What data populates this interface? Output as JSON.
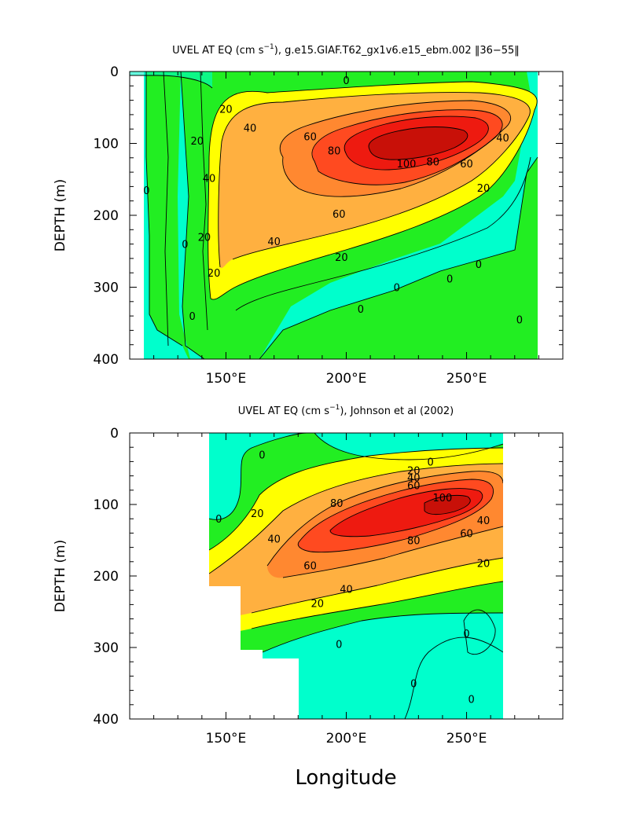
{
  "figure": {
    "xlabel": "Longitude",
    "ylabel": "DEPTH (m)"
  },
  "chart_data": [
    {
      "type": "heatmap",
      "title_main": "UVEL AT EQ (cm s",
      "title_sup": "−1",
      "title_rest": "), g.e15.GIAF.T62_gx1v6.e15_ebm.002 ‖36−55‖",
      "xlabel": "",
      "ylabel": "DEPTH (m)",
      "xlim": [
        110,
        290
      ],
      "ylim": [
        400,
        0
      ],
      "x_ticks": [
        150,
        200,
        250
      ],
      "x_tick_labels": [
        "150°E",
        "200°E",
        "250°E"
      ],
      "y_ticks": [
        0,
        100,
        200,
        300,
        400
      ],
      "y_tick_labels": [
        "0",
        "100",
        "200",
        "300",
        "400"
      ],
      "contour_interval": 10,
      "contour_labels": [
        {
          "text": "0",
          "x": 200,
          "y": 12
        },
        {
          "text": "20",
          "x": 150,
          "y": 52
        },
        {
          "text": "40",
          "x": 160,
          "y": 78
        },
        {
          "text": "60",
          "x": 185,
          "y": 90
        },
        {
          "text": "80",
          "x": 195,
          "y": 110
        },
        {
          "text": "100",
          "x": 225,
          "y": 128
        },
        {
          "text": "80",
          "x": 236,
          "y": 125
        },
        {
          "text": "60",
          "x": 250,
          "y": 128
        },
        {
          "text": "40",
          "x": 265,
          "y": 92
        },
        {
          "text": "20",
          "x": 257,
          "y": 162
        },
        {
          "text": "20",
          "x": 138,
          "y": 96
        },
        {
          "text": "40",
          "x": 143,
          "y": 148
        },
        {
          "text": "20",
          "x": 141,
          "y": 230
        },
        {
          "text": "20",
          "x": 145,
          "y": 280
        },
        {
          "text": "60",
          "x": 197,
          "y": 198
        },
        {
          "text": "40",
          "x": 170,
          "y": 236
        },
        {
          "text": "20",
          "x": 198,
          "y": 258
        },
        {
          "text": "0",
          "x": 110,
          "y": 65
        },
        {
          "text": "0",
          "x": 117,
          "y": 165
        },
        {
          "text": "0",
          "x": 108,
          "y": 240
        },
        {
          "text": "0",
          "x": 133,
          "y": 240
        },
        {
          "text": "0",
          "x": 136,
          "y": 340
        },
        {
          "text": "0",
          "x": 221,
          "y": 300
        },
        {
          "text": "0",
          "x": 206,
          "y": 330
        },
        {
          "text": "0",
          "x": 243,
          "y": 288
        },
        {
          "text": "0",
          "x": 255,
          "y": 268
        },
        {
          "text": "0",
          "x": 272,
          "y": 345
        }
      ]
    },
    {
      "type": "heatmap",
      "title_main": "UVEL AT EQ (cm s",
      "title_sup": "−1",
      "title_rest": "), Johnson et al (2002)",
      "xlabel": "Longitude",
      "ylabel": "DEPTH (m)",
      "xlim": [
        110,
        290
      ],
      "ylim": [
        400,
        0
      ],
      "x_ticks": [
        150,
        200,
        250
      ],
      "x_tick_labels": [
        "150°E",
        "200°E",
        "250°E"
      ],
      "y_ticks": [
        0,
        100,
        200,
        300,
        400
      ],
      "y_tick_labels": [
        "0",
        "100",
        "200",
        "300",
        "400"
      ],
      "contour_interval": 10,
      "contour_labels": [
        {
          "text": "0",
          "x": 165,
          "y": 30
        },
        {
          "text": "0",
          "x": 235,
          "y": 40
        },
        {
          "text": "20",
          "x": 228,
          "y": 52
        },
        {
          "text": "40",
          "x": 228,
          "y": 62
        },
        {
          "text": "60",
          "x": 228,
          "y": 73
        },
        {
          "text": "80",
          "x": 196,
          "y": 98
        },
        {
          "text": "100",
          "x": 240,
          "y": 90
        },
        {
          "text": "80",
          "x": 228,
          "y": 150
        },
        {
          "text": "60",
          "x": 250,
          "y": 140
        },
        {
          "text": "40",
          "x": 257,
          "y": 122
        },
        {
          "text": "20",
          "x": 257,
          "y": 182
        },
        {
          "text": "60",
          "x": 185,
          "y": 185
        },
        {
          "text": "40",
          "x": 200,
          "y": 218
        },
        {
          "text": "20",
          "x": 188,
          "y": 238
        },
        {
          "text": "20",
          "x": 163,
          "y": 112
        },
        {
          "text": "40",
          "x": 170,
          "y": 148
        },
        {
          "text": "0",
          "x": 147,
          "y": 120
        },
        {
          "text": "0",
          "x": 197,
          "y": 295
        },
        {
          "text": "0",
          "x": 228,
          "y": 350
        },
        {
          "text": "0",
          "x": 250,
          "y": 280
        },
        {
          "text": "0",
          "x": 252,
          "y": 372
        }
      ]
    }
  ]
}
